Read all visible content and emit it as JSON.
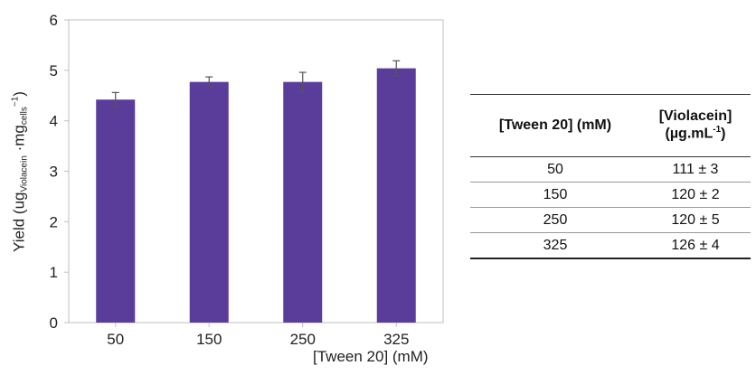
{
  "chart_data": {
    "type": "bar",
    "categories": [
      "50",
      "150",
      "250",
      "325"
    ],
    "values": [
      4.42,
      4.77,
      4.77,
      5.04
    ],
    "errors": [
      0.14,
      0.1,
      0.19,
      0.15
    ],
    "ylim": [
      0,
      6
    ],
    "yticks": [
      "0",
      "1",
      "2",
      "3",
      "4",
      "5",
      "6"
    ],
    "ylabel_parts": {
      "main": "Yield (ug",
      "sub1": "Violacein",
      "mid": " ·mg",
      "sub2": "cells",
      "sup": "−1",
      "end": ")"
    },
    "xlabel": "[Tween 20] (mM)",
    "bar_color": "#5a3d9a",
    "grid": false
  },
  "table": {
    "header_col1": "[Tween 20] (mM)",
    "header_col2_line1": "[Violacein]",
    "header_col2_pre": "(µg.mL",
    "header_col2_sup": "-1",
    "header_col2_post": ")",
    "rows": [
      {
        "tween": "50",
        "violacein": "111 ± 3"
      },
      {
        "tween": "150",
        "violacein": "120 ± 2"
      },
      {
        "tween": "250",
        "violacein": "120 ± 5"
      },
      {
        "tween": "325",
        "violacein": "126 ± 4"
      }
    ]
  }
}
